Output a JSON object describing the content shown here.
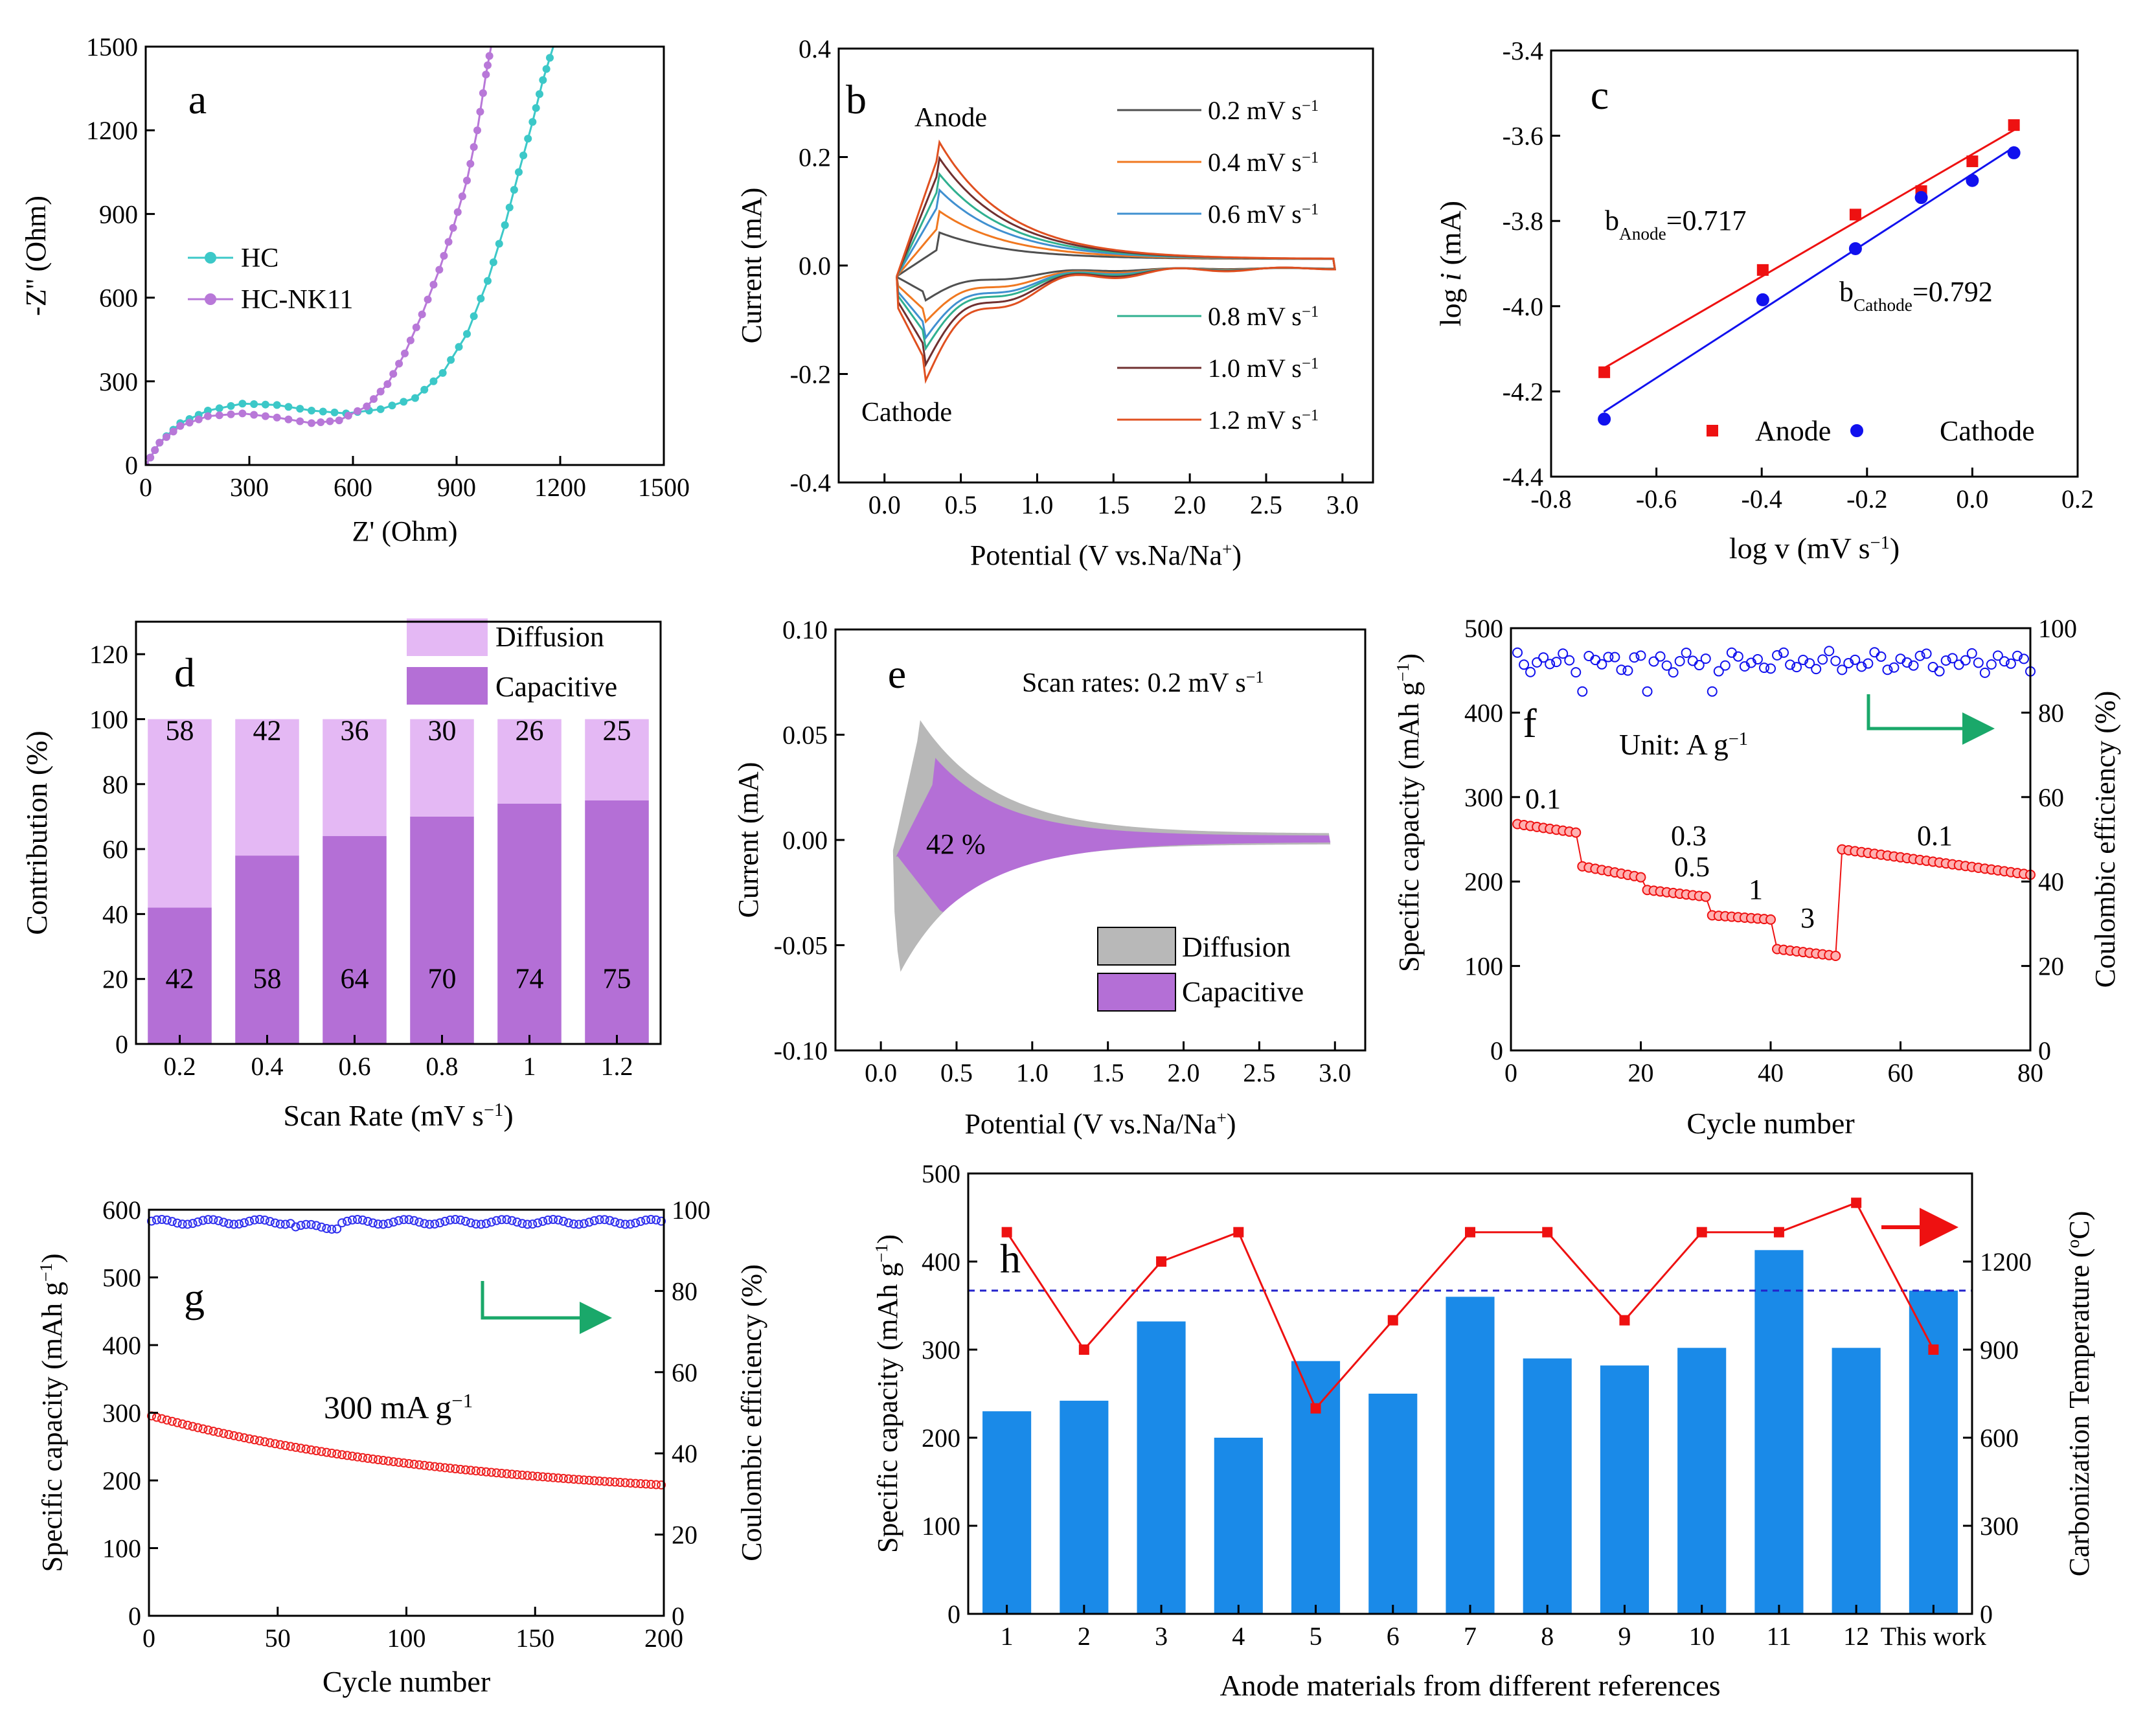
{
  "chart_data": [
    {
      "panel": "a",
      "type": "line",
      "xlabel": "Z' (Ohm)",
      "ylabel": "-Z'' (Ohm)",
      "xlim": [
        0,
        1500
      ],
      "ylim": [
        0,
        1500
      ],
      "xticks": [
        "0",
        "300",
        "600",
        "900",
        "1200",
        "1500"
      ],
      "yticks": [
        "0",
        "300",
        "600",
        "900",
        "1200",
        "1500"
      ],
      "series": [
        {
          "name": "HC",
          "color": "#3cc8c8",
          "points": [
            [
              0,
              0
            ],
            [
              40,
              80
            ],
            [
              100,
              150
            ],
            [
              180,
              195
            ],
            [
              280,
              220
            ],
            [
              380,
              215
            ],
            [
              480,
              195
            ],
            [
              580,
              185
            ],
            [
              680,
              200
            ],
            [
              780,
              240
            ],
            [
              860,
              330
            ],
            [
              930,
              470
            ],
            [
              990,
              660
            ],
            [
              1040,
              860
            ],
            [
              1080,
              1050
            ],
            [
              1120,
              1230
            ],
            [
              1150,
              1380
            ],
            [
              1180,
              1500
            ]
          ]
        },
        {
          "name": "HC-NK11",
          "color": "#b878d8",
          "points": [
            [
              0,
              0
            ],
            [
              40,
              80
            ],
            [
              100,
              140
            ],
            [
              180,
              175
            ],
            [
              280,
              185
            ],
            [
              380,
              170
            ],
            [
              480,
              150
            ],
            [
              560,
              160
            ],
            [
              640,
              210
            ],
            [
              700,
              290
            ],
            [
              750,
              400
            ],
            [
              800,
              540
            ],
            [
              850,
              700
            ],
            [
              890,
              850
            ],
            [
              930,
              1020
            ],
            [
              960,
              1200
            ],
            [
              985,
              1400
            ],
            [
              1000,
              1500
            ]
          ]
        }
      ]
    },
    {
      "panel": "b",
      "type": "line",
      "xlabel": "Potential (V vs.Na/Na+)",
      "ylabel": "Current (mA)",
      "xlim": [
        -0.3,
        3.2
      ],
      "ylim": [
        -0.4,
        0.4
      ],
      "xticks": [
        "0.0",
        "0.5",
        "1.0",
        "1.5",
        "2.0",
        "2.5",
        "3.0"
      ],
      "yticks": [
        "-0.4",
        "-0.2",
        "0.0",
        "0.2",
        "0.4"
      ],
      "annotations": [
        "Anode",
        "Cathode"
      ],
      "series": [
        {
          "name": "0.2 mV s-1",
          "color": "#505050",
          "peak": 0.05,
          "trough": -0.06
        },
        {
          "name": "0.4 mV s-1",
          "color": "#f07820",
          "peak": 0.09,
          "trough": -0.1
        },
        {
          "name": "0.6 mV s-1",
          "color": "#4090d0",
          "peak": 0.13,
          "trough": -0.13
        },
        {
          "name": "0.8 mV s-1",
          "color": "#30b090",
          "peak": 0.16,
          "trough": -0.15
        },
        {
          "name": "1.0 mV s-1",
          "color": "#703030",
          "peak": 0.19,
          "trough": -0.18
        },
        {
          "name": "1.2 mV s-1",
          "color": "#e05020",
          "peak": 0.22,
          "trough": -0.21
        }
      ]
    },
    {
      "panel": "c",
      "type": "scatter",
      "xlabel": "log v (mV s-1)",
      "ylabel": "log i (mA)",
      "xlim": [
        -0.8,
        0.2
      ],
      "ylim": [
        -4.4,
        -3.4
      ],
      "xticks": [
        "-0.8",
        "-0.6",
        "-0.4",
        "-0.2",
        "0.0",
        "0.2"
      ],
      "yticks": [
        "-4.4",
        "-4.2",
        "-4.0",
        "-3.8",
        "-3.6",
        "-3.4"
      ],
      "series": [
        {
          "name": "Anode",
          "color": "#ee1111",
          "marker": "square",
          "x": [
            -0.699,
            -0.398,
            -0.222,
            -0.097,
            0.0,
            0.079
          ],
          "y": [
            -4.155,
            -3.915,
            -3.785,
            -3.73,
            -3.66,
            -3.575
          ]
        },
        {
          "name": "Cathode",
          "color": "#1111ee",
          "marker": "circle",
          "x": [
            -0.699,
            -0.398,
            -0.222,
            -0.097,
            0.0,
            0.079
          ],
          "y": [
            -4.265,
            -3.985,
            -3.865,
            -3.745,
            -3.705,
            -3.64
          ]
        }
      ],
      "labels": {
        "anode_b": "=0.717",
        "cathode_b": "=0.792",
        "sub_anode": "Anode",
        "sub_cathode": "Cathode"
      }
    },
    {
      "panel": "d",
      "type": "bar",
      "xlabel": "Scan Rate (mV s-1)",
      "ylabel": "Contribution (%)",
      "ylim": [
        0,
        130
      ],
      "yticks": [
        "0",
        "20",
        "40",
        "60",
        "80",
        "100",
        "120"
      ],
      "categories": [
        "0.2",
        "0.4",
        "0.6",
        "0.8",
        "1",
        "1.2"
      ],
      "series": [
        {
          "name": "Capacitive",
          "color": "#b46fd6",
          "values": [
            42,
            58,
            64,
            70,
            74,
            75
          ]
        },
        {
          "name": "Diffusion",
          "color": "#e4b8f4",
          "values": [
            58,
            42,
            36,
            30,
            26,
            25
          ]
        }
      ]
    },
    {
      "panel": "e",
      "type": "area",
      "xlabel": "Potential (V vs.Na/Na+)",
      "ylabel": "Current (mA)",
      "xlim": [
        -0.3,
        3.2
      ],
      "ylim": [
        -0.1,
        0.1
      ],
      "xticks": [
        "0.0",
        "0.5",
        "1.0",
        "1.5",
        "2.0",
        "2.5",
        "3.0"
      ],
      "yticks": [
        "-0.10",
        "-0.05",
        "0.00",
        "0.05",
        "0.10"
      ],
      "title": "Scan rates: 0.2 mV s-1",
      "annotation": "42 %",
      "series": [
        {
          "name": "Diffusion",
          "color": "#b8b8b8"
        },
        {
          "name": "Capacitive",
          "color": "#b46fd6"
        }
      ]
    },
    {
      "panel": "f",
      "type": "scatter",
      "xlabel": "Cycle number",
      "ylabel": "Specific capacity (mAh g-1)",
      "y2label": "Coulombic efficiency (%)",
      "xlim": [
        0,
        80
      ],
      "ylim": [
        0,
        500
      ],
      "y2lim": [
        0,
        100
      ],
      "xticks": [
        "0",
        "20",
        "40",
        "60",
        "80"
      ],
      "yticks": [
        "0",
        "100",
        "200",
        "300",
        "400",
        "500"
      ],
      "y2ticks": [
        "0",
        "20",
        "40",
        "60",
        "80",
        "100"
      ],
      "unit_label": "Unit: A g-1",
      "rate_labels": [
        "0.1",
        "0.3",
        "0.5",
        "1",
        "3",
        "0.1"
      ],
      "segments": [
        {
          "from": 1,
          "to": 10,
          "start": 268,
          "end": 258
        },
        {
          "from": 11,
          "to": 20,
          "start": 218,
          "end": 205
        },
        {
          "from": 21,
          "to": 30,
          "start": 190,
          "end": 182
        },
        {
          "from": 31,
          "to": 40,
          "start": 160,
          "end": 155
        },
        {
          "from": 41,
          "to": 50,
          "start": 120,
          "end": 112
        },
        {
          "from": 51,
          "to": 80,
          "start": 238,
          "end": 208
        }
      ],
      "ce_mean": 92
    },
    {
      "panel": "g",
      "type": "scatter",
      "xlabel": "Cycle number",
      "ylabel": "Specific capacity (mAh g-1)",
      "y2label": "Coulombic efficiency (%)",
      "xlim": [
        0,
        200
      ],
      "ylim": [
        0,
        600
      ],
      "y2lim": [
        0,
        100
      ],
      "xticks": [
        "0",
        "50",
        "100",
        "150",
        "200"
      ],
      "yticks": [
        "0",
        "100",
        "200",
        "300",
        "400",
        "500",
        "600"
      ],
      "y2ticks": [
        "0",
        "20",
        "40",
        "60",
        "80",
        "100"
      ],
      "rate": "300 mA g-1",
      "capacity_start": 292,
      "capacity_end": 183,
      "ce_mean": 97
    },
    {
      "panel": "h",
      "type": "bar",
      "xlabel": "Anode materials from different references",
      "ylabel": "Specific capacity (mAh g-1)",
      "y2label": "Carbonization Temperature (oC)",
      "ylim": [
        0,
        500
      ],
      "y2lim": [
        0,
        1500
      ],
      "yticks": [
        "0",
        "100",
        "200",
        "300",
        "400",
        "500"
      ],
      "y2ticks": [
        "0",
        "300",
        "600",
        "900",
        "1200"
      ],
      "categories": [
        "1",
        "2",
        "3",
        "4",
        "5",
        "6",
        "7",
        "8",
        "9",
        "10",
        "11",
        "12",
        "This work"
      ],
      "capacity": [
        230,
        242,
        332,
        200,
        287,
        250,
        360,
        290,
        282,
        302,
        413,
        302,
        367
      ],
      "temperature": [
        1300,
        900,
        1200,
        1300,
        700,
        1000,
        1300,
        1300,
        1000,
        1300,
        1300,
        1400,
        900
      ],
      "reference_line": 367,
      "bar_color": "#1a8ae8",
      "line_color": "#ee1111"
    }
  ]
}
